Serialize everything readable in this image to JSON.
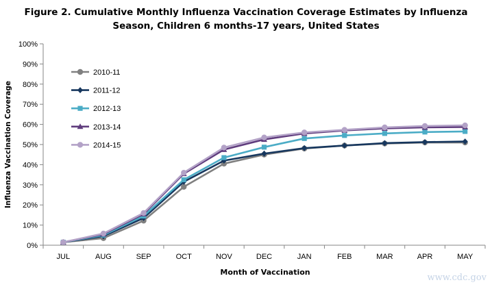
{
  "title": {
    "line1": "Figure 2. Cumulative Monthly Influenza Vaccination Coverage Estimates by Influenza",
    "line2": "Season, Children 6 months-17 years, United States"
  },
  "watermark": "www.cdc.gov",
  "chart_data": {
    "type": "line",
    "title": "Figure 2. Cumulative Monthly Influenza Vaccination Coverage Estimates by Influenza Season, Children 6 months-17 years, United States",
    "xlabel": "Month of Vaccination",
    "ylabel": "Influenza Vaccination Coverage",
    "categories": [
      "JUL",
      "AUG",
      "SEP",
      "OCT",
      "NOV",
      "DEC",
      "JAN",
      "FEB",
      "MAR",
      "APR",
      "MAY"
    ],
    "ylim": [
      0,
      100
    ],
    "yticks": [
      "0%",
      "10%",
      "20%",
      "30%",
      "40%",
      "50%",
      "60%",
      "70%",
      "80%",
      "90%",
      "100%"
    ],
    "grid": false,
    "legend_position": "top-left",
    "series": [
      {
        "name": "2010-11",
        "color": "#808080",
        "marker": "circle",
        "values": [
          1.5,
          3.5,
          12.2,
          29.0,
          40.5,
          45.0,
          48.0,
          49.5,
          50.5,
          51.0,
          51.0
        ]
      },
      {
        "name": "2011-12",
        "color": "#17375e",
        "marker": "diamond",
        "values": [
          1.5,
          4.5,
          13.5,
          31.5,
          42.0,
          45.5,
          48.2,
          49.5,
          50.7,
          51.2,
          51.5
        ]
      },
      {
        "name": "2012-13",
        "color": "#4bacc6",
        "marker": "square",
        "values": [
          1.5,
          5.0,
          14.5,
          32.5,
          43.5,
          48.7,
          53.0,
          54.5,
          55.5,
          56.2,
          56.5
        ]
      },
      {
        "name": "2013-14",
        "color": "#5f3c7d",
        "marker": "triangle",
        "values": [
          1.5,
          5.5,
          15.5,
          35.5,
          47.5,
          52.5,
          55.5,
          57.0,
          58.0,
          58.5,
          58.7
        ]
      },
      {
        "name": "2014-15",
        "color": "#b3a2c7",
        "marker": "circle",
        "values": [
          1.5,
          5.8,
          16.0,
          36.0,
          48.5,
          53.5,
          56.0,
          57.3,
          58.5,
          59.2,
          59.5
        ]
      }
    ]
  }
}
